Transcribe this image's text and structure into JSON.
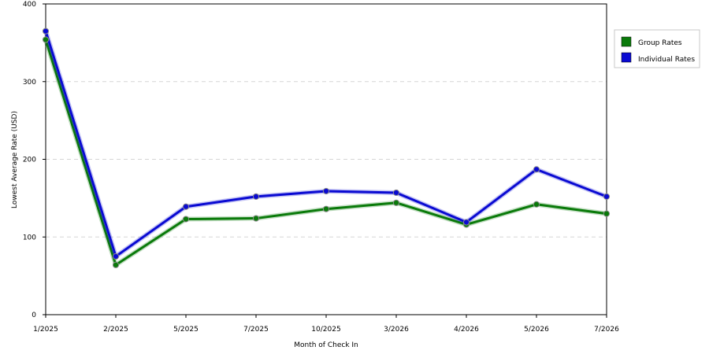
{
  "chart_data": {
    "type": "line",
    "title": "",
    "xlabel": "Month of Check In",
    "ylabel": "Lowest Average Rate (USD)",
    "categories": [
      "1/2025",
      "2/2025",
      "5/2025",
      "7/2025",
      "10/2025",
      "3/2026",
      "4/2026",
      "5/2026",
      "7/2026"
    ],
    "ylim": [
      0,
      400
    ],
    "yticks": [
      0,
      100,
      200,
      300,
      400
    ],
    "grid": "horizontal-dashed",
    "legend_position": "right",
    "series": [
      {
        "name": "Group Rates",
        "color": "#0a7a0a",
        "values": [
          354,
          64,
          123,
          124,
          136,
          144,
          116,
          142,
          130
        ]
      },
      {
        "name": "Individual Rates",
        "color": "#0a0ad2",
        "values": [
          365,
          75,
          139,
          152,
          159,
          157,
          119,
          187,
          152
        ]
      }
    ]
  }
}
